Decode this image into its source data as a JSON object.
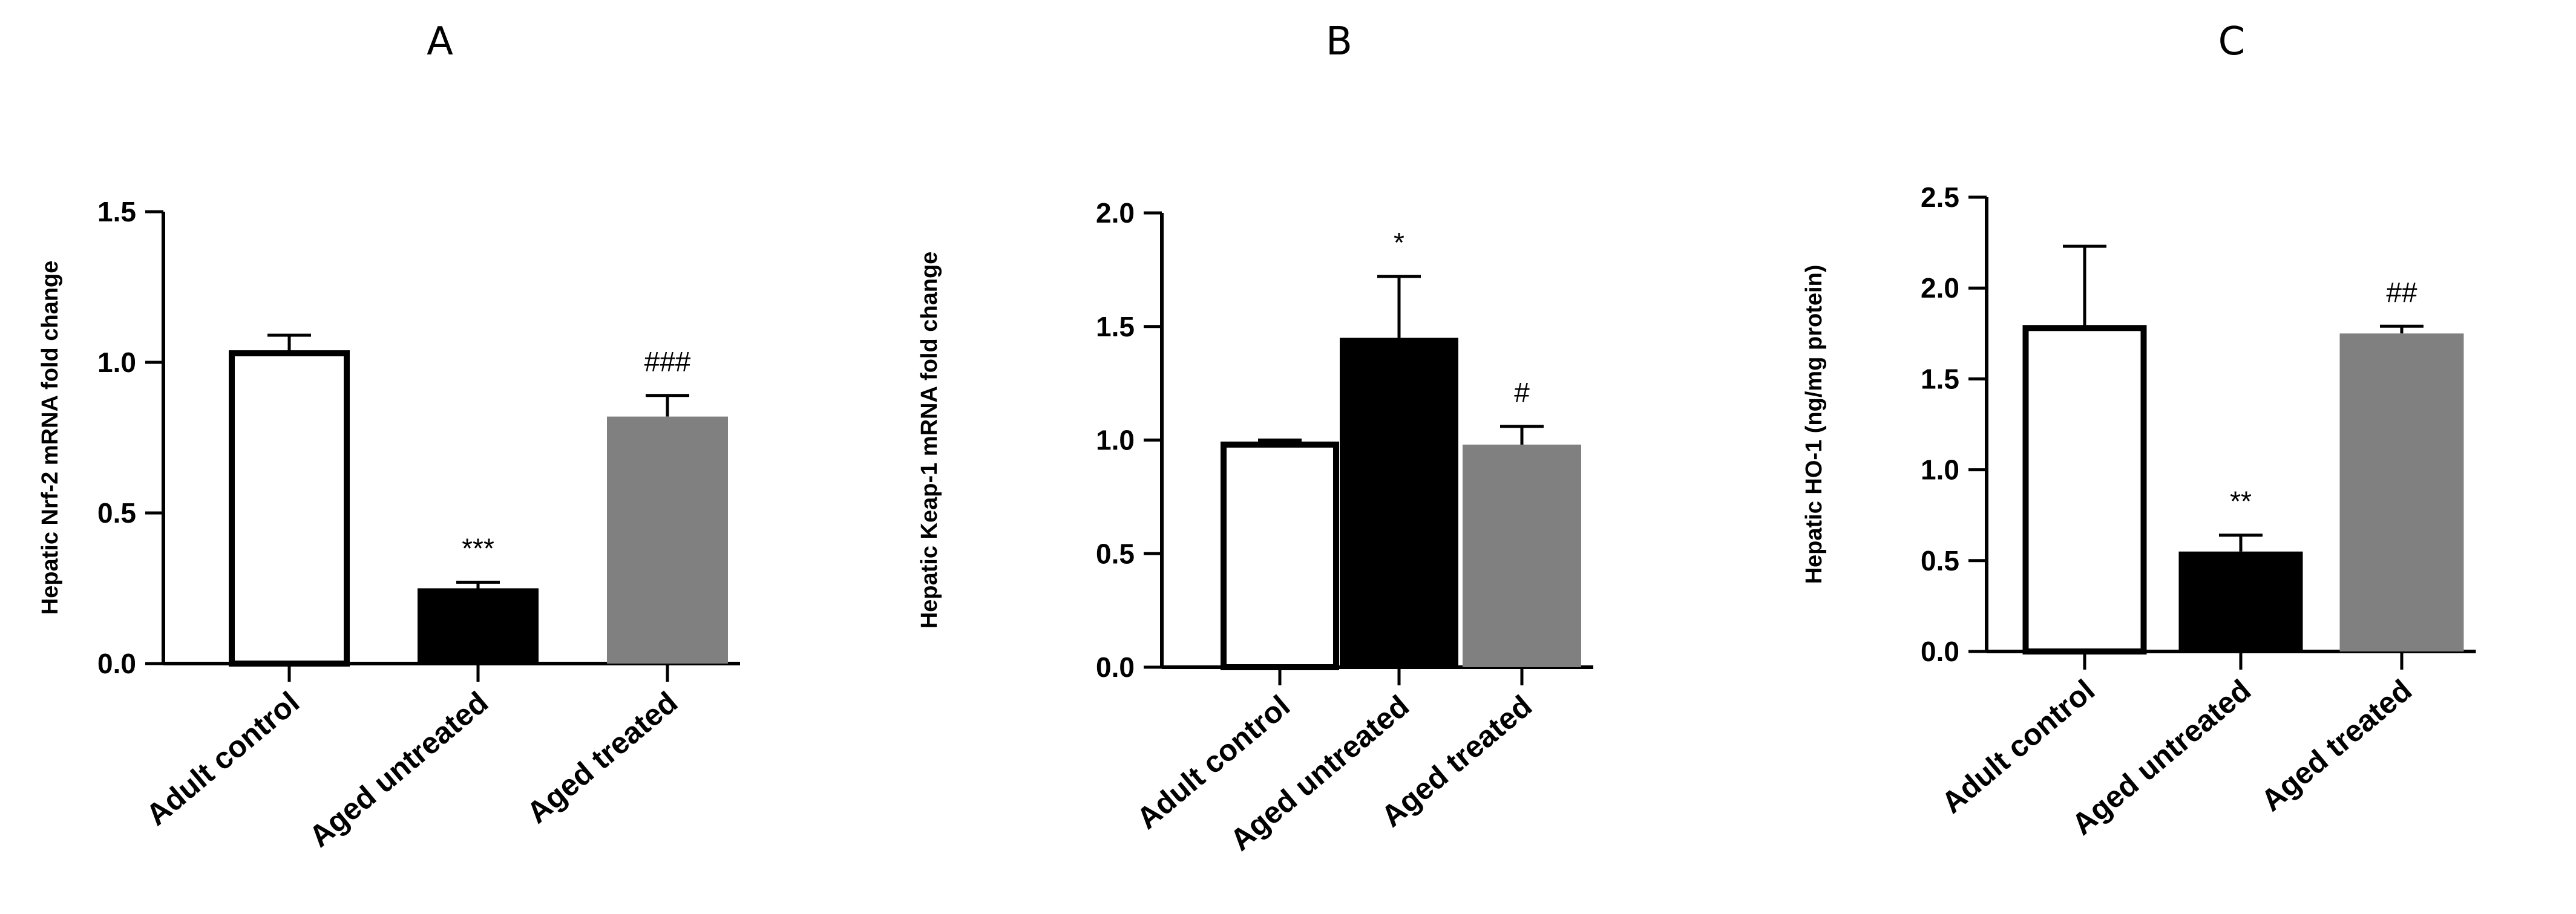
{
  "colors": {
    "axis": "#000000",
    "white_bar": "#ffffff",
    "black_bar": "#000000",
    "gray_bar": "#808080"
  },
  "chart_data": [
    {
      "type": "bar",
      "title": "A",
      "ylabel": "Hepatic Nrf-2 mRNA fold change",
      "categories": [
        "Adult control",
        "Aged untreated",
        "Aged treated"
      ],
      "values": [
        1.03,
        0.25,
        0.82
      ],
      "errors": [
        0.06,
        0.02,
        0.07
      ],
      "significance": [
        "",
        "***",
        "###"
      ],
      "bar_colors": [
        "#ffffff",
        "#000000",
        "#808080"
      ],
      "ylim": [
        0,
        1.5
      ],
      "yticks": [
        "0.0",
        "0.5",
        "1.0",
        "1.5"
      ]
    },
    {
      "type": "bar",
      "title": "B",
      "ylabel": "Hepatic Keap-1 mRNA fold change",
      "categories": [
        "Adult control",
        "Aged untreated",
        "Aged treated"
      ],
      "values": [
        0.98,
        1.45,
        0.98
      ],
      "errors": [
        0.02,
        0.27,
        0.08
      ],
      "significance": [
        "",
        "*",
        "#"
      ],
      "bar_colors": [
        "#ffffff",
        "#000000",
        "#808080"
      ],
      "ylim": [
        0,
        2.0
      ],
      "yticks": [
        "0.0",
        "0.5",
        "1.0",
        "1.5",
        "2.0"
      ]
    },
    {
      "type": "bar",
      "title": "C",
      "ylabel": "Hepatic HO-1 (ng/mg protein)",
      "categories": [
        "Adult control",
        "Aged untreated",
        "Aged treated"
      ],
      "values": [
        1.78,
        0.55,
        1.75
      ],
      "errors": [
        0.45,
        0.09,
        0.04
      ],
      "significance": [
        "",
        "**",
        "##"
      ],
      "bar_colors": [
        "#ffffff",
        "#000000",
        "#808080"
      ],
      "ylim": [
        0,
        2.5
      ],
      "yticks": [
        "0.0",
        "0.5",
        "1.0",
        "1.5",
        "2.0",
        "2.5"
      ]
    }
  ]
}
